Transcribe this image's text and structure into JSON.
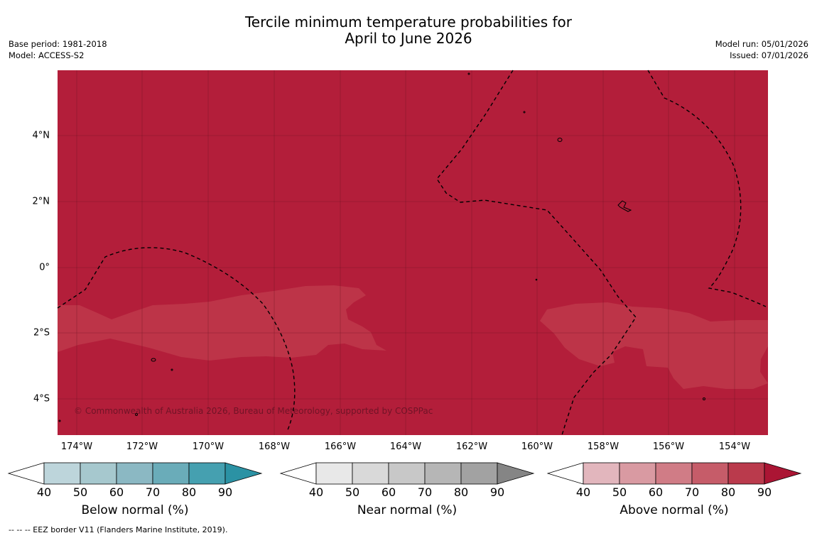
{
  "title": {
    "line1": "Tercile minimum temperature probabilities for",
    "line2": "April to June 2026"
  },
  "meta": {
    "base_period": "Base period: 1981-2018",
    "model": "Model: ACCESS-S2",
    "model_run": "Model run: 05/01/2026",
    "issued": "Issued: 07/01/2026"
  },
  "map": {
    "background_color": "#b31e3a",
    "light_region_color": "#bd3448",
    "lat_labels": [
      "4°N",
      "2°N",
      "0°",
      "2°S",
      "4°S"
    ],
    "lon_labels": [
      "174°W",
      "172°W",
      "170°W",
      "168°W",
      "166°W",
      "164°W",
      "162°W",
      "160°W",
      "158°W",
      "156°W",
      "154°W"
    ],
    "copyright": "© Commonwealth of Australia 2026, Bureau of Meteorology, supported by COSPPac"
  },
  "colorbars": [
    {
      "label": "Below normal (%)",
      "ticks": [
        "40",
        "50",
        "60",
        "70",
        "80",
        "90"
      ],
      "colors": [
        "#ffffff",
        "#bdd5db",
        "#a6c8ce",
        "#8bb8c3",
        "#6aacb9",
        "#45a0b0",
        "#2b92a4"
      ]
    },
    {
      "label": "Near normal (%)",
      "ticks": [
        "40",
        "50",
        "60",
        "70",
        "80",
        "90"
      ],
      "colors": [
        "#ffffff",
        "#e8e8e8",
        "#d9d9d9",
        "#c8c8c8",
        "#b6b6b6",
        "#a2a2a2",
        "#858585"
      ]
    },
    {
      "label": "Above normal (%)",
      "ticks": [
        "40",
        "50",
        "60",
        "70",
        "80",
        "90"
      ],
      "colors": [
        "#ffffff",
        "#e2b6bd",
        "#d99aa2",
        "#d07c86",
        "#c65c69",
        "#ba3a4c",
        "#ab1534"
      ]
    }
  ],
  "footnote": "--  --  -- EEZ border V11 (Flanders Marine Institute, 2019)."
}
